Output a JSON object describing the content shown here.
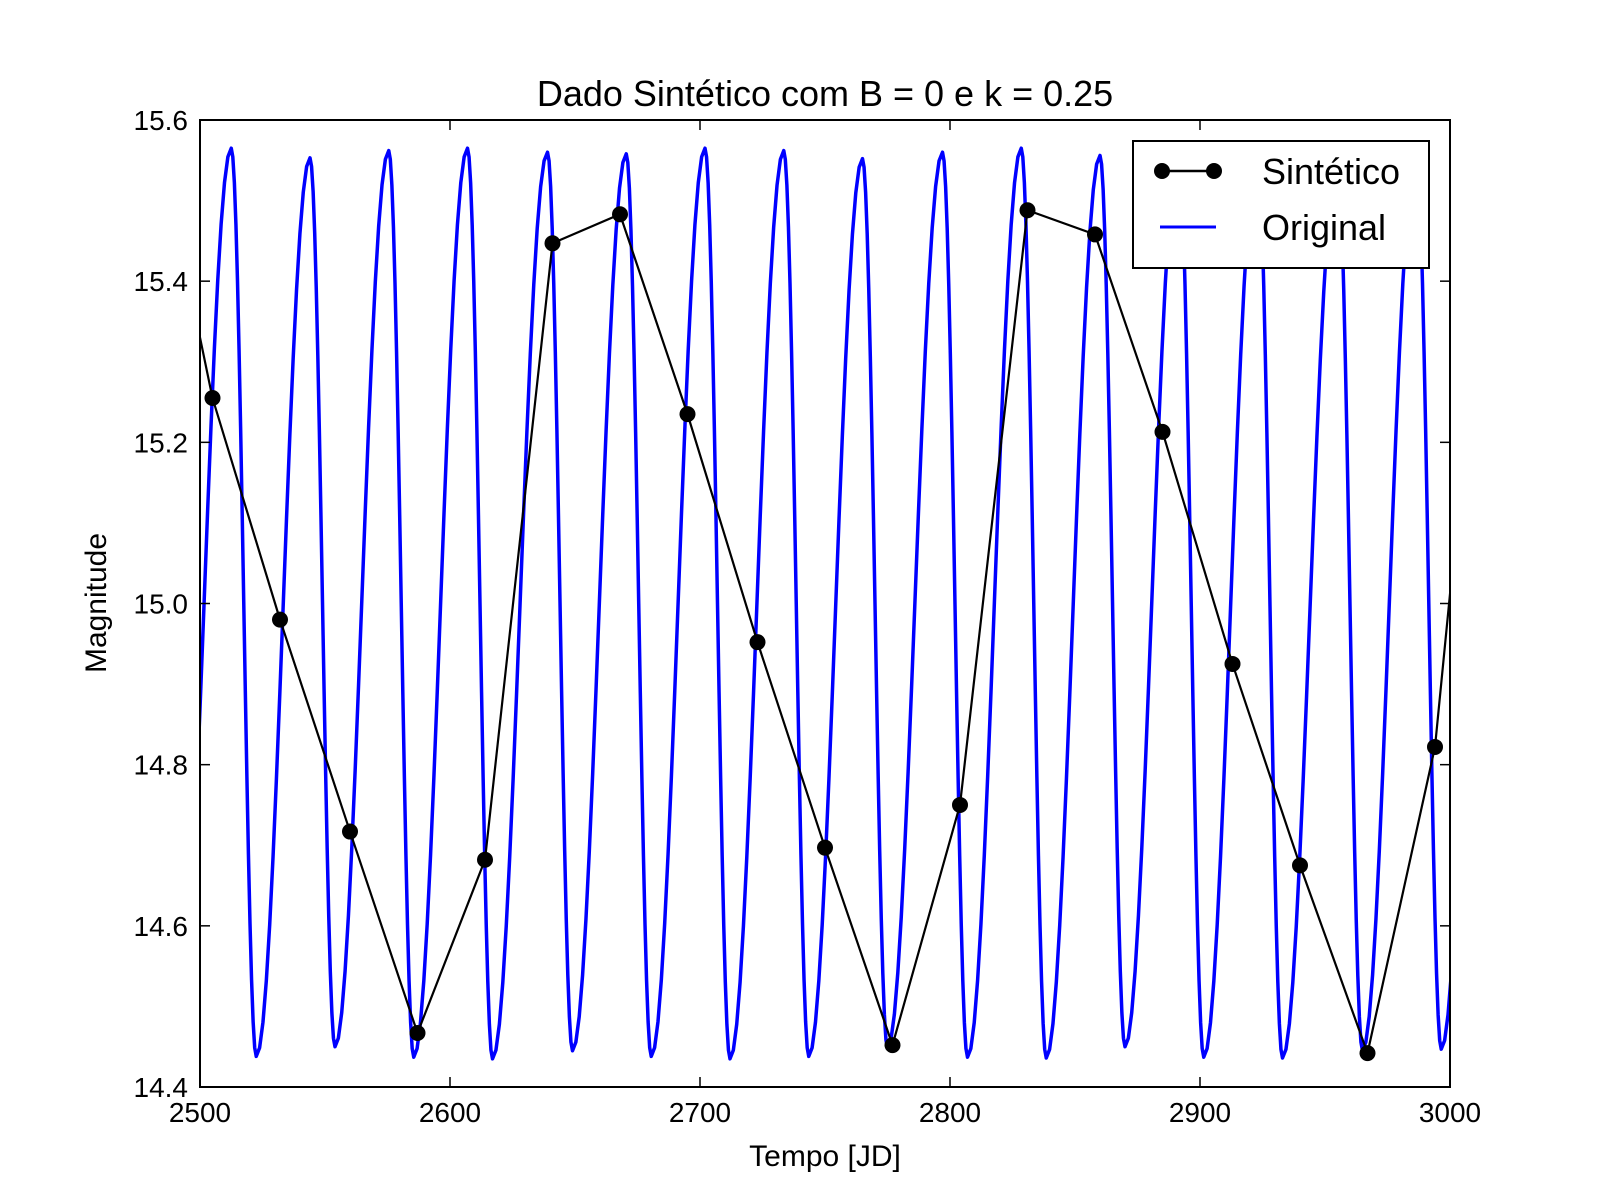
{
  "chart_data": {
    "type": "line",
    "title": "Dado Sintético com B = 0 e k = 0.25",
    "xlabel": "Tempo [JD]",
    "ylabel": "Magnitude",
    "xlim": [
      2500,
      3000
    ],
    "ylim": [
      14.4,
      15.6
    ],
    "xticks": [
      "2500",
      "2600",
      "2700",
      "2800",
      "2900",
      "3000"
    ],
    "yticks": [
      "14.4",
      "14.6",
      "14.8",
      "15.0",
      "15.2",
      "15.4",
      "15.6"
    ],
    "grid": false,
    "legend_position": "top-right",
    "series": [
      {
        "name": "Sintético",
        "color": "#000000",
        "marker": "circle",
        "points": [
          [
            2494,
            15.42
          ],
          [
            2505,
            15.255
          ],
          [
            2532,
            14.98
          ],
          [
            2560,
            14.717
          ],
          [
            2587,
            14.467
          ],
          [
            2614,
            14.682
          ],
          [
            2641,
            15.447
          ],
          [
            2668,
            15.483
          ],
          [
            2695,
            15.235
          ],
          [
            2723,
            14.952
          ],
          [
            2750,
            14.697
          ],
          [
            2777,
            14.452
          ],
          [
            2804,
            14.75
          ],
          [
            2831,
            15.488
          ],
          [
            2858,
            15.458
          ],
          [
            2885,
            15.213
          ],
          [
            2913,
            14.925
          ],
          [
            2940,
            14.675
          ],
          [
            2967,
            14.442
          ],
          [
            2994,
            14.822
          ],
          [
            3005,
            15.17
          ]
        ]
      },
      {
        "name": "Original",
        "color": "#0000ff",
        "period": 31.6,
        "peak_times": [
          2512.5,
          2544,
          2575.5,
          2607,
          2639,
          2670.5,
          2702,
          2733.5,
          2765,
          2797,
          2828.5,
          2860,
          2891.5,
          2923,
          2955,
          2986.5
        ],
        "peak_values": [
          15.565,
          15.553,
          15.562,
          15.565,
          15.56,
          15.558,
          15.565,
          15.562,
          15.552,
          15.56,
          15.565,
          15.556,
          15.56,
          15.558,
          15.55,
          15.56
        ],
        "trough_times": [
          2522.5,
          2554,
          2585.5,
          2617,
          2649,
          2680.5,
          2712,
          2743.5,
          2775,
          2807,
          2838.5,
          2870,
          2901.5,
          2933,
          2965,
          2996.5
        ],
        "trough_values": [
          14.438,
          14.45,
          14.437,
          14.435,
          14.445,
          14.438,
          14.435,
          14.438,
          14.448,
          14.437,
          14.436,
          14.45,
          14.437,
          14.436,
          14.445,
          14.447
        ]
      }
    ]
  }
}
